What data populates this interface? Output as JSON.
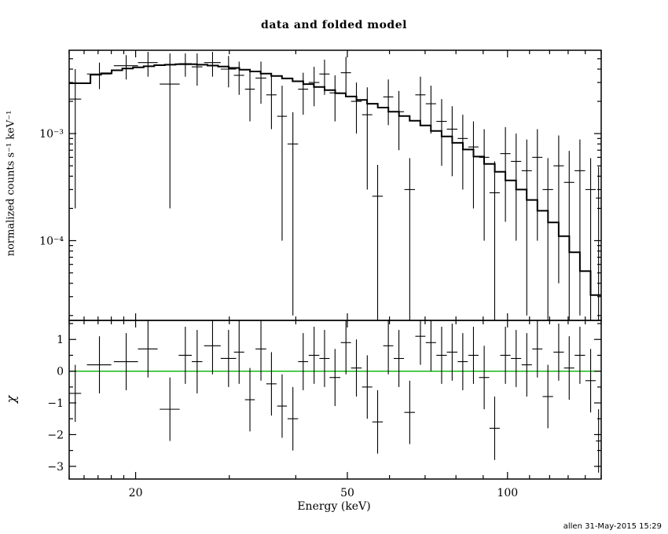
{
  "signature": "allen 31-May-2015 15:29",
  "colors": {
    "background": "#ffffff",
    "frame": "#000000",
    "data": "#000000",
    "model": "#000000",
    "zero_line": "#00b300"
  },
  "chart_data": {
    "type": "scatter",
    "subtype": "xspec-spectrum-with-residuals",
    "title": "data and folded model",
    "xlabel": "Energy (keV)",
    "ylabel_top": "normalized counts s⁻¹ keV⁻¹",
    "ylabel_bottom": "χ",
    "xscale": "log",
    "xlim": [
      15,
      150
    ],
    "xticks": {
      "major": [
        20,
        50,
        100
      ],
      "major_labels": [
        "20",
        "50",
        "100"
      ],
      "minor": [
        15,
        16,
        17,
        18,
        19,
        30,
        40,
        60,
        70,
        80,
        90,
        110,
        120,
        130,
        140,
        150
      ]
    },
    "top": {
      "yscale": "log",
      "ylim": [
        1.8e-05,
        0.006
      ],
      "ytick_major": [
        0.001,
        0.0001
      ],
      "ytick_labels": [
        "10⁻³",
        "10⁻⁴"
      ],
      "ytick_minor": [
        2e-05,
        3e-05,
        4e-05,
        5e-05,
        6e-05,
        7e-05,
        8e-05,
        9e-05,
        0.0002,
        0.0003,
        0.0004,
        0.0005,
        0.0006,
        0.0007,
        0.0008,
        0.0009,
        0.002,
        0.003,
        0.004,
        0.005
      ]
    },
    "bottom": {
      "yscale": "linear",
      "ylim": [
        -3.4,
        1.6
      ],
      "ytick_major": [
        1,
        0,
        -1,
        -2,
        -3
      ],
      "ytick_labels": [
        "1",
        "0",
        "−1",
        "−2",
        "−3"
      ],
      "ytick_minor": [
        1.5,
        0.5,
        -0.5,
        -1.5,
        -2.5
      ]
    },
    "model": {
      "bin_edges": [
        15.0,
        15.71,
        16.45,
        17.22,
        18.03,
        18.88,
        19.77,
        20.71,
        21.68,
        22.7,
        23.77,
        24.89,
        26.07,
        27.29,
        28.58,
        29.93,
        31.34,
        32.81,
        34.36,
        35.98,
        37.68,
        39.45,
        41.31,
        43.26,
        45.3,
        47.43,
        49.67,
        52.01,
        54.46,
        57.03,
        59.71,
        62.53,
        65.48,
        68.56,
        71.79,
        75.18,
        78.72,
        82.43,
        86.31,
        90.38,
        94.64,
        99.1,
        103.77,
        108.67,
        113.79,
        119.15,
        124.77,
        130.65,
        136.8,
        143.25,
        150.0
      ],
      "values": [
        0.00295,
        0.00295,
        0.00355,
        0.00365,
        0.0039,
        0.00405,
        0.00415,
        0.00425,
        0.00435,
        0.0044,
        0.00445,
        0.00445,
        0.0044,
        0.00432,
        0.00422,
        0.0041,
        0.00395,
        0.0038,
        0.00363,
        0.00345,
        0.00327,
        0.00308,
        0.0029,
        0.00272,
        0.00255,
        0.00238,
        0.00222,
        0.00206,
        0.0019,
        0.00175,
        0.0016,
        0.00146,
        0.00132,
        0.00119,
        0.00106,
        0.00094,
        0.00082,
        0.00071,
        0.00061,
        0.00052,
        0.00044,
        0.000365,
        0.0003,
        0.00024,
        0.00019,
        0.000148,
        0.00011,
        7.8e-05,
        5.2e-05,
        3.1e-05
      ]
    },
    "data_points": [
      {
        "x": 15.4,
        "xerr": 0.4,
        "y": 0.0021,
        "yerr": 0.0019
      },
      {
        "x": 17.1,
        "xerr": 0.9,
        "y": 0.0036,
        "yerr": 0.001
      },
      {
        "x": 19.2,
        "xerr": 1.0,
        "y": 0.0043,
        "yerr": 0.0011
      },
      {
        "x": 21.1,
        "xerr": 0.9,
        "y": 0.0046,
        "yerr": 0.0012
      },
      {
        "x": 23.2,
        "xerr": 1.0,
        "y": 0.0029,
        "yerr": 0.0027
      },
      {
        "x": 24.8,
        "xerr": 0.7,
        "y": 0.0045,
        "yerr": 0.0011
      },
      {
        "x": 26.1,
        "xerr": 0.6,
        "y": 0.0042,
        "yerr": 0.0014
      },
      {
        "x": 27.9,
        "xerr": 1.0,
        "y": 0.0046,
        "yerr": 0.0012
      },
      {
        "x": 29.9,
        "xerr": 1.0,
        "y": 0.004,
        "yerr": 0.0013
      },
      {
        "x": 31.3,
        "xerr": 0.7,
        "y": 0.0035,
        "yerr": 0.0012
      },
      {
        "x": 32.8,
        "xerr": 0.7,
        "y": 0.0026,
        "yerr": 0.0013
      },
      {
        "x": 34.4,
        "xerr": 0.8,
        "y": 0.0033,
        "yerr": 0.0014
      },
      {
        "x": 36.0,
        "xerr": 0.8,
        "y": 0.0023,
        "yerr": 0.0012
      },
      {
        "x": 37.7,
        "xerr": 0.8,
        "y": 0.00145,
        "yerr": 0.00135
      },
      {
        "x": 39.5,
        "xerr": 0.9,
        "y": 0.0008,
        "yerr": 0.00078
      },
      {
        "x": 41.3,
        "xerr": 0.9,
        "y": 0.0026,
        "yerr": 0.0011
      },
      {
        "x": 43.3,
        "xerr": 1.0,
        "y": 0.003,
        "yerr": 0.0012
      },
      {
        "x": 45.3,
        "xerr": 1.0,
        "y": 0.0036,
        "yerr": 0.0013
      },
      {
        "x": 47.4,
        "xerr": 1.1,
        "y": 0.0024,
        "yerr": 0.0011
      },
      {
        "x": 49.7,
        "xerr": 1.1,
        "y": 0.0037,
        "yerr": 0.0015
      },
      {
        "x": 52.0,
        "xerr": 1.2,
        "y": 0.002,
        "yerr": 0.001
      },
      {
        "x": 54.5,
        "xerr": 1.2,
        "y": 0.0015,
        "yerr": 0.0012
      },
      {
        "x": 57.0,
        "xerr": 1.3,
        "y": 0.00026,
        "yerr": 0.00025
      },
      {
        "x": 59.7,
        "xerr": 1.3,
        "y": 0.0022,
        "yerr": 0.001
      },
      {
        "x": 62.5,
        "xerr": 1.4,
        "y": 0.0016,
        "yerr": 0.0009
      },
      {
        "x": 65.5,
        "xerr": 1.5,
        "y": 0.0003,
        "yerr": 0.00029
      },
      {
        "x": 68.6,
        "xerr": 1.5,
        "y": 0.0023,
        "yerr": 0.0011
      },
      {
        "x": 71.8,
        "xerr": 1.6,
        "y": 0.0019,
        "yerr": 0.0009
      },
      {
        "x": 75.2,
        "xerr": 1.7,
        "y": 0.0013,
        "yerr": 0.0008
      },
      {
        "x": 78.7,
        "xerr": 1.8,
        "y": 0.0011,
        "yerr": 0.0007
      },
      {
        "x": 82.4,
        "xerr": 1.8,
        "y": 0.0009,
        "yerr": 0.0006
      },
      {
        "x": 86.3,
        "xerr": 1.9,
        "y": 0.00075,
        "yerr": 0.00055
      },
      {
        "x": 90.4,
        "xerr": 2.0,
        "y": 0.0006,
        "yerr": 0.0005
      },
      {
        "x": 94.6,
        "xerr": 2.1,
        "y": 0.00028,
        "yerr": 0.00027
      },
      {
        "x": 99.1,
        "xerr": 2.2,
        "y": 0.00065,
        "yerr": 0.0005
      },
      {
        "x": 103.8,
        "xerr": 2.3,
        "y": 0.00055,
        "yerr": 0.00045
      },
      {
        "x": 108.7,
        "xerr": 2.4,
        "y": 0.00045,
        "yerr": 0.00043
      },
      {
        "x": 113.8,
        "xerr": 2.5,
        "y": 0.0006,
        "yerr": 0.0005
      },
      {
        "x": 119.1,
        "xerr": 2.7,
        "y": 0.0003,
        "yerr": 0.00029
      },
      {
        "x": 124.8,
        "xerr": 2.8,
        "y": 0.0005,
        "yerr": 0.00046
      },
      {
        "x": 130.6,
        "xerr": 2.9,
        "y": 0.00035,
        "yerr": 0.00034
      },
      {
        "x": 136.8,
        "xerr": 3.1,
        "y": 0.00045,
        "yerr": 0.00043
      },
      {
        "x": 143.3,
        "xerr": 3.2,
        "y": 0.0003,
        "yerr": 0.00029
      },
      {
        "x": 148.3,
        "xerr": 1.7,
        "y": 0.00025,
        "yerr": 0.00024
      }
    ],
    "residuals": [
      {
        "x": 15.4,
        "xerr": 0.4,
        "chi": -0.7,
        "err": 0.9
      },
      {
        "x": 17.1,
        "xerr": 0.9,
        "chi": 0.2,
        "err": 0.9
      },
      {
        "x": 19.2,
        "xerr": 1.0,
        "chi": 0.3,
        "err": 0.9
      },
      {
        "x": 21.1,
        "xerr": 0.9,
        "chi": 0.7,
        "err": 0.9
      },
      {
        "x": 23.2,
        "xerr": 1.0,
        "chi": -1.2,
        "err": 1.0
      },
      {
        "x": 24.8,
        "xerr": 0.7,
        "chi": 0.5,
        "err": 0.9
      },
      {
        "x": 26.1,
        "xerr": 0.6,
        "chi": 0.3,
        "err": 1.0
      },
      {
        "x": 27.9,
        "xerr": 1.0,
        "chi": 0.8,
        "err": 0.9
      },
      {
        "x": 29.9,
        "xerr": 1.0,
        "chi": 0.4,
        "err": 0.9
      },
      {
        "x": 31.3,
        "xerr": 0.7,
        "chi": 0.6,
        "err": 1.0
      },
      {
        "x": 32.8,
        "xerr": 0.7,
        "chi": -0.9,
        "err": 1.0
      },
      {
        "x": 34.4,
        "xerr": 0.8,
        "chi": 0.7,
        "err": 1.0
      },
      {
        "x": 36.0,
        "xerr": 0.8,
        "chi": -0.4,
        "err": 1.0
      },
      {
        "x": 37.7,
        "xerr": 0.8,
        "chi": -1.1,
        "err": 1.0
      },
      {
        "x": 39.5,
        "xerr": 0.9,
        "chi": -1.5,
        "err": 1.0
      },
      {
        "x": 41.3,
        "xerr": 0.9,
        "chi": 0.3,
        "err": 0.9
      },
      {
        "x": 43.3,
        "xerr": 1.0,
        "chi": 0.5,
        "err": 0.9
      },
      {
        "x": 45.3,
        "xerr": 1.0,
        "chi": 0.4,
        "err": 0.9
      },
      {
        "x": 47.4,
        "xerr": 1.1,
        "chi": -0.2,
        "err": 0.9
      },
      {
        "x": 49.7,
        "xerr": 1.1,
        "chi": 0.9,
        "err": 1.0
      },
      {
        "x": 52.0,
        "xerr": 1.2,
        "chi": 0.1,
        "err": 0.9
      },
      {
        "x": 54.5,
        "xerr": 1.2,
        "chi": -0.5,
        "err": 1.0
      },
      {
        "x": 57.0,
        "xerr": 1.3,
        "chi": -1.6,
        "err": 1.0
      },
      {
        "x": 59.7,
        "xerr": 1.3,
        "chi": 0.8,
        "err": 0.9
      },
      {
        "x": 62.5,
        "xerr": 1.4,
        "chi": 0.4,
        "err": 0.9
      },
      {
        "x": 65.5,
        "xerr": 1.5,
        "chi": -1.3,
        "err": 1.0
      },
      {
        "x": 68.6,
        "xerr": 1.5,
        "chi": 1.1,
        "err": 0.9
      },
      {
        "x": 71.8,
        "xerr": 1.6,
        "chi": 0.9,
        "err": 0.9
      },
      {
        "x": 75.2,
        "xerr": 1.7,
        "chi": 0.5,
        "err": 0.9
      },
      {
        "x": 78.7,
        "xerr": 1.8,
        "chi": 0.6,
        "err": 0.9
      },
      {
        "x": 82.4,
        "xerr": 1.8,
        "chi": 0.3,
        "err": 0.9
      },
      {
        "x": 86.3,
        "xerr": 1.9,
        "chi": 0.5,
        "err": 0.9
      },
      {
        "x": 90.4,
        "xerr": 2.0,
        "chi": -0.2,
        "err": 1.0
      },
      {
        "x": 94.6,
        "xerr": 2.1,
        "chi": -1.8,
        "err": 1.0
      },
      {
        "x": 99.1,
        "xerr": 2.2,
        "chi": 0.5,
        "err": 0.9
      },
      {
        "x": 103.8,
        "xerr": 2.3,
        "chi": 0.4,
        "err": 0.9
      },
      {
        "x": 108.7,
        "xerr": 2.4,
        "chi": 0.2,
        "err": 1.0
      },
      {
        "x": 113.8,
        "xerr": 2.5,
        "chi": 0.7,
        "err": 0.9
      },
      {
        "x": 119.1,
        "xerr": 2.7,
        "chi": -0.8,
        "err": 1.0
      },
      {
        "x": 124.8,
        "xerr": 2.8,
        "chi": 0.6,
        "err": 0.9
      },
      {
        "x": 130.6,
        "xerr": 2.9,
        "chi": 0.1,
        "err": 1.0
      },
      {
        "x": 136.8,
        "xerr": 3.1,
        "chi": 0.5,
        "err": 0.9
      },
      {
        "x": 143.3,
        "xerr": 3.2,
        "chi": -0.3,
        "err": 1.0
      },
      {
        "x": 148.3,
        "xerr": 1.7,
        "chi": -2.2,
        "err": 1.0
      }
    ]
  }
}
